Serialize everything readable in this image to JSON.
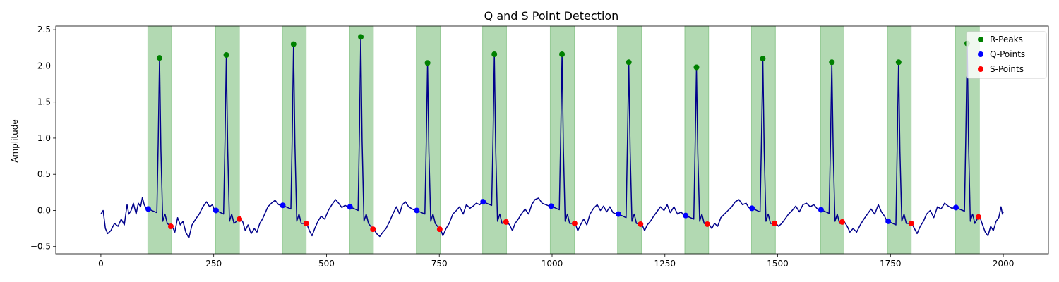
{
  "chart_data": {
    "type": "line",
    "title": "Q and S Point Detection",
    "xlabel": "",
    "ylabel": "Amplitude",
    "xlim": [
      -100,
      2100
    ],
    "ylim": [
      -0.6,
      2.55
    ],
    "xticks": [
      0,
      250,
      500,
      750,
      1000,
      1250,
      1500,
      1750,
      2000
    ],
    "yticks": [
      -0.5,
      0.0,
      0.5,
      1.0,
      1.5,
      2.0,
      2.5
    ],
    "xtick_labels": [
      "0",
      "250",
      "500",
      "750",
      "1000",
      "1250",
      "1500",
      "1750",
      "2000"
    ],
    "ytick_labels": [
      "−0.5",
      "0.0",
      "0.5",
      "1.0",
      "1.5",
      "2.0",
      "2.5"
    ],
    "grid": false,
    "legend_position": "top-right",
    "signal_color": "#00008b",
    "r_peaks": {
      "name": "R-Peaks",
      "color": "#008000",
      "points": [
        [
          130,
          2.11
        ],
        [
          278,
          2.15
        ],
        [
          427,
          2.3
        ],
        [
          576,
          2.4
        ],
        [
          724,
          2.04
        ],
        [
          872,
          2.16
        ],
        [
          1022,
          2.16
        ],
        [
          1170,
          2.05
        ],
        [
          1320,
          1.98
        ],
        [
          1467,
          2.1
        ],
        [
          1620,
          2.05
        ],
        [
          1768,
          2.05
        ],
        [
          1920,
          2.31
        ]
      ]
    },
    "q_points": {
      "name": "Q-Points",
      "color": "#0000ff",
      "points": [
        [
          105,
          0.02
        ],
        [
          255,
          0.0
        ],
        [
          403,
          0.07
        ],
        [
          552,
          0.05
        ],
        [
          700,
          0.0
        ],
        [
          847,
          0.12
        ],
        [
          998,
          0.06
        ],
        [
          1147,
          -0.05
        ],
        [
          1296,
          -0.07
        ],
        [
          1443,
          0.03
        ],
        [
          1596,
          0.01
        ],
        [
          1745,
          -0.15
        ],
        [
          1895,
          0.04
        ]
      ]
    },
    "s_points": {
      "name": "S-Points",
      "color": "#ff0000",
      "points": [
        [
          155,
          -0.22
        ],
        [
          307,
          -0.12
        ],
        [
          455,
          -0.18
        ],
        [
          603,
          -0.26
        ],
        [
          751,
          -0.26
        ],
        [
          898,
          -0.16
        ],
        [
          1050,
          -0.18
        ],
        [
          1196,
          -0.19
        ],
        [
          1344,
          -0.19
        ],
        [
          1493,
          -0.18
        ],
        [
          1643,
          -0.16
        ],
        [
          1796,
          -0.18
        ],
        [
          1945,
          -0.09
        ]
      ]
    },
    "qrs_regions": {
      "color": "#008000",
      "intervals": [
        [
          104,
          157
        ],
        [
          254,
          307
        ],
        [
          402,
          455
        ],
        [
          551,
          604
        ],
        [
          699,
          752
        ],
        [
          846,
          899
        ],
        [
          996,
          1050
        ],
        [
          1145,
          1198
        ],
        [
          1294,
          1347
        ],
        [
          1442,
          1495
        ],
        [
          1595,
          1647
        ],
        [
          1743,
          1796
        ],
        [
          1894,
          1947
        ]
      ]
    },
    "baseline_points": [
      [
        0,
        -0.05
      ],
      [
        5,
        0.0
      ],
      [
        10,
        -0.25
      ],
      [
        15,
        -0.32
      ],
      [
        22,
        -0.28
      ],
      [
        30,
        -0.18
      ],
      [
        38,
        -0.22
      ],
      [
        45,
        -0.12
      ],
      [
        52,
        -0.2
      ],
      [
        58,
        0.08
      ],
      [
        62,
        -0.05
      ],
      [
        67,
        0.0
      ],
      [
        72,
        0.1
      ],
      [
        78,
        -0.05
      ],
      [
        83,
        0.1
      ],
      [
        88,
        0.05
      ],
      [
        92,
        0.18
      ],
      [
        96,
        0.08
      ],
      [
        100,
        0.03
      ],
      [
        104,
        0.0
      ],
      [
        158,
        -0.22
      ],
      [
        164,
        -0.3
      ],
      [
        170,
        -0.1
      ],
      [
        176,
        -0.2
      ],
      [
        182,
        -0.15
      ],
      [
        188,
        -0.3
      ],
      [
        195,
        -0.38
      ],
      [
        202,
        -0.2
      ],
      [
        210,
        -0.12
      ],
      [
        218,
        -0.05
      ],
      [
        226,
        0.05
      ],
      [
        234,
        0.12
      ],
      [
        241,
        0.05
      ],
      [
        247,
        0.08
      ],
      [
        252,
        0.0
      ],
      [
        308,
        -0.12
      ],
      [
        314,
        -0.15
      ],
      [
        320,
        -0.28
      ],
      [
        326,
        -0.2
      ],
      [
        333,
        -0.32
      ],
      [
        340,
        -0.25
      ],
      [
        346,
        -0.3
      ],
      [
        352,
        -0.18
      ],
      [
        358,
        -0.12
      ],
      [
        363,
        -0.05
      ],
      [
        370,
        0.05
      ],
      [
        378,
        0.1
      ],
      [
        386,
        0.14
      ],
      [
        394,
        0.08
      ],
      [
        400,
        0.07
      ],
      [
        456,
        -0.18
      ],
      [
        462,
        -0.28
      ],
      [
        468,
        -0.35
      ],
      [
        474,
        -0.25
      ],
      [
        481,
        -0.15
      ],
      [
        488,
        -0.08
      ],
      [
        496,
        -0.12
      ],
      [
        504,
        0.0
      ],
      [
        512,
        0.08
      ],
      [
        520,
        0.15
      ],
      [
        527,
        0.1
      ],
      [
        534,
        0.04
      ],
      [
        541,
        0.07
      ],
      [
        548,
        0.05
      ],
      [
        605,
        -0.26
      ],
      [
        611,
        -0.32
      ],
      [
        618,
        -0.36
      ],
      [
        625,
        -0.3
      ],
      [
        632,
        -0.25
      ],
      [
        640,
        -0.15
      ],
      [
        647,
        -0.05
      ],
      [
        655,
        0.05
      ],
      [
        662,
        -0.05
      ],
      [
        668,
        0.08
      ],
      [
        675,
        0.12
      ],
      [
        682,
        0.05
      ],
      [
        690,
        0.02
      ],
      [
        697,
        0.0
      ],
      [
        753,
        -0.26
      ],
      [
        758,
        -0.35
      ],
      [
        765,
        -0.25
      ],
      [
        772,
        -0.18
      ],
      [
        780,
        -0.05
      ],
      [
        788,
        0.0
      ],
      [
        795,
        0.05
      ],
      [
        803,
        -0.05
      ],
      [
        810,
        0.08
      ],
      [
        818,
        0.03
      ],
      [
        825,
        0.06
      ],
      [
        832,
        0.1
      ],
      [
        840,
        0.08
      ],
      [
        845,
        0.12
      ],
      [
        900,
        -0.16
      ],
      [
        906,
        -0.2
      ],
      [
        912,
        -0.28
      ],
      [
        918,
        -0.18
      ],
      [
        925,
        -0.12
      ],
      [
        932,
        -0.05
      ],
      [
        940,
        0.02
      ],
      [
        948,
        -0.05
      ],
      [
        955,
        0.08
      ],
      [
        962,
        0.15
      ],
      [
        970,
        0.17
      ],
      [
        978,
        0.1
      ],
      [
        986,
        0.08
      ],
      [
        994,
        0.06
      ],
      [
        1051,
        -0.18
      ],
      [
        1057,
        -0.28
      ],
      [
        1063,
        -0.2
      ],
      [
        1070,
        -0.12
      ],
      [
        1077,
        -0.2
      ],
      [
        1084,
        -0.05
      ],
      [
        1092,
        0.03
      ],
      [
        1100,
        0.08
      ],
      [
        1107,
        0.0
      ],
      [
        1114,
        0.06
      ],
      [
        1121,
        -0.02
      ],
      [
        1128,
        0.05
      ],
      [
        1135,
        -0.03
      ],
      [
        1142,
        -0.05
      ],
      [
        1199,
        -0.19
      ],
      [
        1205,
        -0.28
      ],
      [
        1211,
        -0.2
      ],
      [
        1218,
        -0.15
      ],
      [
        1225,
        -0.08
      ],
      [
        1232,
        -0.02
      ],
      [
        1240,
        0.05
      ],
      [
        1248,
        0.0
      ],
      [
        1255,
        0.08
      ],
      [
        1262,
        -0.03
      ],
      [
        1270,
        0.05
      ],
      [
        1278,
        -0.05
      ],
      [
        1286,
        -0.02
      ],
      [
        1292,
        -0.07
      ],
      [
        1348,
        -0.19
      ],
      [
        1354,
        -0.25
      ],
      [
        1360,
        -0.18
      ],
      [
        1367,
        -0.22
      ],
      [
        1374,
        -0.1
      ],
      [
        1382,
        -0.05
      ],
      [
        1390,
        0.0
      ],
      [
        1398,
        0.05
      ],
      [
        1406,
        0.12
      ],
      [
        1414,
        0.15
      ],
      [
        1422,
        0.08
      ],
      [
        1430,
        0.1
      ],
      [
        1436,
        0.04
      ],
      [
        1441,
        0.03
      ],
      [
        1496,
        -0.18
      ],
      [
        1502,
        -0.22
      ],
      [
        1509,
        -0.18
      ],
      [
        1516,
        -0.12
      ],
      [
        1524,
        -0.05
      ],
      [
        1532,
        0.0
      ],
      [
        1540,
        0.06
      ],
      [
        1548,
        -0.02
      ],
      [
        1556,
        0.08
      ],
      [
        1564,
        0.1
      ],
      [
        1572,
        0.05
      ],
      [
        1580,
        0.08
      ],
      [
        1588,
        0.02
      ],
      [
        1594,
        0.01
      ],
      [
        1648,
        -0.16
      ],
      [
        1654,
        -0.22
      ],
      [
        1660,
        -0.3
      ],
      [
        1667,
        -0.25
      ],
      [
        1675,
        -0.3
      ],
      [
        1683,
        -0.2
      ],
      [
        1691,
        -0.12
      ],
      [
        1699,
        -0.05
      ],
      [
        1707,
        0.02
      ],
      [
        1715,
        -0.05
      ],
      [
        1723,
        0.08
      ],
      [
        1730,
        -0.02
      ],
      [
        1737,
        -0.08
      ],
      [
        1742,
        -0.15
      ],
      [
        1797,
        -0.18
      ],
      [
        1803,
        -0.25
      ],
      [
        1809,
        -0.32
      ],
      [
        1816,
        -0.22
      ],
      [
        1823,
        -0.15
      ],
      [
        1830,
        -0.05
      ],
      [
        1838,
        0.0
      ],
      [
        1846,
        -0.1
      ],
      [
        1854,
        0.05
      ],
      [
        1862,
        0.02
      ],
      [
        1870,
        0.1
      ],
      [
        1878,
        0.06
      ],
      [
        1886,
        0.03
      ],
      [
        1893,
        0.04
      ],
      [
        1948,
        -0.09
      ],
      [
        1954,
        -0.2
      ],
      [
        1960,
        -0.3
      ],
      [
        1966,
        -0.35
      ],
      [
        1972,
        -0.22
      ],
      [
        1978,
        -0.28
      ],
      [
        1984,
        -0.15
      ],
      [
        1990,
        -0.1
      ],
      [
        1995,
        0.05
      ],
      [
        1998,
        -0.05
      ],
      [
        2000,
        -0.02
      ]
    ]
  }
}
